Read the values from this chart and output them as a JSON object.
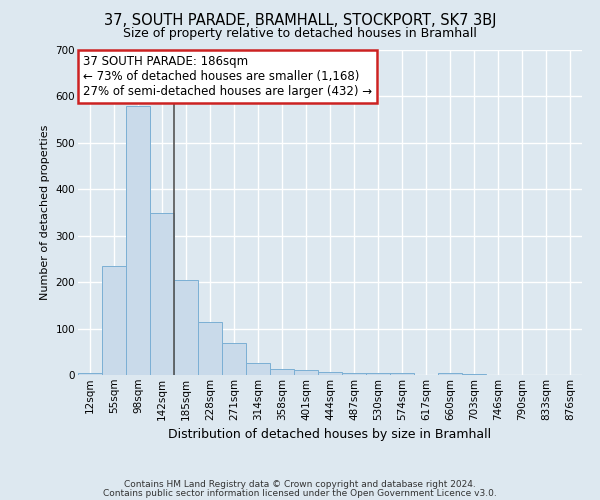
{
  "title_line1": "37, SOUTH PARADE, BRAMHALL, STOCKPORT, SK7 3BJ",
  "title_line2": "Size of property relative to detached houses in Bramhall",
  "xlabel": "Distribution of detached houses by size in Bramhall",
  "ylabel": "Number of detached properties",
  "bar_labels": [
    "12sqm",
    "55sqm",
    "98sqm",
    "142sqm",
    "185sqm",
    "228sqm",
    "271sqm",
    "314sqm",
    "358sqm",
    "401sqm",
    "444sqm",
    "487sqm",
    "530sqm",
    "574sqm",
    "617sqm",
    "660sqm",
    "703sqm",
    "746sqm",
    "790sqm",
    "833sqm",
    "876sqm"
  ],
  "bar_values": [
    5,
    235,
    580,
    350,
    205,
    115,
    70,
    25,
    13,
    10,
    7,
    5,
    5,
    4,
    0,
    5,
    3,
    0,
    0,
    0,
    0
  ],
  "bar_color": "#c9daea",
  "bar_edge_color": "#7bafd4",
  "highlight_bar_index": 3,
  "highlight_line_color": "#555555",
  "ylim": [
    0,
    700
  ],
  "yticks": [
    0,
    100,
    200,
    300,
    400,
    500,
    600,
    700
  ],
  "annotation_text": "37 SOUTH PARADE: 186sqm\n← 73% of detached houses are smaller (1,168)\n27% of semi-detached houses are larger (432) →",
  "annotation_box_color": "#ffffff",
  "annotation_box_edge": "#cc2222",
  "footnote1": "Contains HM Land Registry data © Crown copyright and database right 2024.",
  "footnote2": "Contains public sector information licensed under the Open Government Licence v3.0.",
  "bg_color": "#dde8f0",
  "plot_bg_color": "#dde8f0",
  "grid_color": "#ffffff",
  "title1_fontsize": 10.5,
  "title2_fontsize": 9.0,
  "ylabel_fontsize": 8.0,
  "xlabel_fontsize": 9.0,
  "tick_fontsize": 7.5,
  "annot_fontsize": 8.5,
  "footnote_fontsize": 6.5
}
